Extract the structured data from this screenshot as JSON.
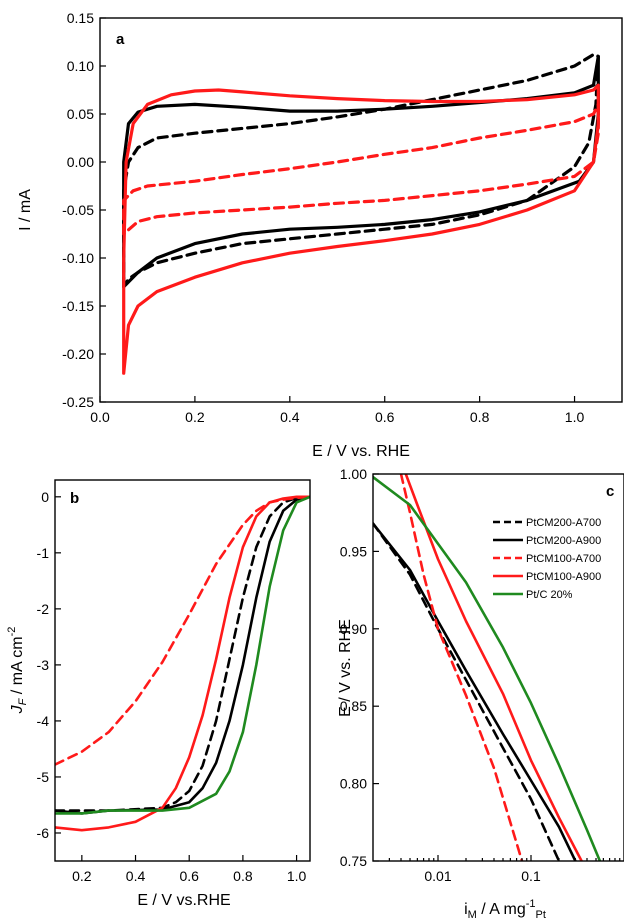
{
  "colors": {
    "black": "#000000",
    "red": "#ff1a1a",
    "green": "#1f8a1f"
  },
  "chart_data": [
    {
      "type": "line",
      "panel_label": "a",
      "xlabel": "E / V vs. RHE",
      "ylabel": "I / mA",
      "xlim": [
        0.0,
        1.1
      ],
      "ylim": [
        -0.25,
        0.15
      ],
      "x_ticks": [
        0.0,
        0.2,
        0.4,
        0.6,
        0.8,
        1.0
      ],
      "y_ticks": [
        -0.25,
        -0.2,
        -0.15,
        -0.1,
        -0.05,
        0.0,
        0.05,
        0.1,
        0.15
      ],
      "x_tick_labels": [
        "0.0",
        "0.2",
        "0.4",
        "0.6",
        "0.8",
        "1.0"
      ],
      "y_tick_labels": [
        "-0.25",
        "-0.20",
        "-0.15",
        "-0.10",
        "-0.05",
        "0.00",
        "0.05",
        "0.10",
        "0.15"
      ],
      "series": [
        {
          "color": "black",
          "dash": true,
          "points": [
            [
              0.05,
              -0.13
            ],
            [
              0.05,
              -0.03
            ],
            [
              0.06,
              0.0
            ],
            [
              0.08,
              0.015
            ],
            [
              0.12,
              0.025
            ],
            [
              0.2,
              0.03
            ],
            [
              0.3,
              0.035
            ],
            [
              0.4,
              0.04
            ],
            [
              0.5,
              0.047
            ],
            [
              0.6,
              0.055
            ],
            [
              0.7,
              0.065
            ],
            [
              0.8,
              0.075
            ],
            [
              0.9,
              0.085
            ],
            [
              1.0,
              0.1
            ],
            [
              1.04,
              0.112
            ],
            [
              1.05,
              0.11
            ],
            [
              1.045,
              0.06
            ],
            [
              1.03,
              0.02
            ],
            [
              1.0,
              -0.005
            ],
            [
              0.9,
              -0.04
            ],
            [
              0.8,
              -0.055
            ],
            [
              0.7,
              -0.065
            ],
            [
              0.6,
              -0.07
            ],
            [
              0.5,
              -0.075
            ],
            [
              0.4,
              -0.08
            ],
            [
              0.3,
              -0.085
            ],
            [
              0.2,
              -0.095
            ],
            [
              0.12,
              -0.105
            ],
            [
              0.08,
              -0.115
            ],
            [
              0.06,
              -0.122
            ],
            [
              0.05,
              -0.13
            ]
          ]
        },
        {
          "color": "black",
          "dash": false,
          "points": [
            [
              0.05,
              -0.13
            ],
            [
              0.05,
              0.0
            ],
            [
              0.06,
              0.04
            ],
            [
              0.08,
              0.052
            ],
            [
              0.12,
              0.058
            ],
            [
              0.2,
              0.06
            ],
            [
              0.3,
              0.057
            ],
            [
              0.4,
              0.053
            ],
            [
              0.5,
              0.053
            ],
            [
              0.6,
              0.055
            ],
            [
              0.7,
              0.058
            ],
            [
              0.8,
              0.062
            ],
            [
              0.9,
              0.066
            ],
            [
              1.0,
              0.072
            ],
            [
              1.04,
              0.08
            ],
            [
              1.05,
              0.11
            ],
            [
              1.05,
              0.05
            ],
            [
              1.04,
              0.0
            ],
            [
              1.01,
              -0.02
            ],
            [
              0.9,
              -0.04
            ],
            [
              0.8,
              -0.052
            ],
            [
              0.7,
              -0.06
            ],
            [
              0.6,
              -0.065
            ],
            [
              0.5,
              -0.068
            ],
            [
              0.4,
              -0.07
            ],
            [
              0.3,
              -0.075
            ],
            [
              0.2,
              -0.085
            ],
            [
              0.12,
              -0.1
            ],
            [
              0.08,
              -0.115
            ],
            [
              0.05,
              -0.13
            ]
          ]
        },
        {
          "color": "red",
          "dash": true,
          "points": [
            [
              0.05,
              -0.075
            ],
            [
              0.05,
              -0.04
            ],
            [
              0.07,
              -0.03
            ],
            [
              0.1,
              -0.025
            ],
            [
              0.2,
              -0.02
            ],
            [
              0.3,
              -0.013
            ],
            [
              0.4,
              -0.007
            ],
            [
              0.5,
              0.0
            ],
            [
              0.6,
              0.008
            ],
            [
              0.7,
              0.015
            ],
            [
              0.8,
              0.025
            ],
            [
              0.9,
              0.033
            ],
            [
              1.0,
              0.042
            ],
            [
              1.04,
              0.05
            ],
            [
              1.05,
              0.06
            ],
            [
              1.05,
              0.03
            ],
            [
              1.04,
              0.0
            ],
            [
              1.0,
              -0.015
            ],
            [
              0.9,
              -0.023
            ],
            [
              0.8,
              -0.03
            ],
            [
              0.7,
              -0.035
            ],
            [
              0.6,
              -0.04
            ],
            [
              0.5,
              -0.043
            ],
            [
              0.4,
              -0.047
            ],
            [
              0.3,
              -0.05
            ],
            [
              0.2,
              -0.053
            ],
            [
              0.12,
              -0.057
            ],
            [
              0.08,
              -0.062
            ],
            [
              0.05,
              -0.075
            ]
          ]
        },
        {
          "color": "red",
          "dash": false,
          "points": [
            [
              0.05,
              -0.22
            ],
            [
              0.05,
              -0.1
            ],
            [
              0.055,
              0.0
            ],
            [
              0.07,
              0.04
            ],
            [
              0.1,
              0.06
            ],
            [
              0.15,
              0.07
            ],
            [
              0.2,
              0.074
            ],
            [
              0.25,
              0.075
            ],
            [
              0.3,
              0.073
            ],
            [
              0.4,
              0.069
            ],
            [
              0.5,
              0.066
            ],
            [
              0.6,
              0.064
            ],
            [
              0.7,
              0.063
            ],
            [
              0.8,
              0.063
            ],
            [
              0.9,
              0.065
            ],
            [
              1.0,
              0.07
            ],
            [
              1.04,
              0.075
            ],
            [
              1.05,
              0.08
            ],
            [
              1.05,
              0.04
            ],
            [
              1.04,
              0.0
            ],
            [
              1.0,
              -0.03
            ],
            [
              0.9,
              -0.05
            ],
            [
              0.8,
              -0.065
            ],
            [
              0.7,
              -0.075
            ],
            [
              0.6,
              -0.082
            ],
            [
              0.5,
              -0.088
            ],
            [
              0.4,
              -0.095
            ],
            [
              0.3,
              -0.105
            ],
            [
              0.2,
              -0.12
            ],
            [
              0.12,
              -0.135
            ],
            [
              0.08,
              -0.15
            ],
            [
              0.06,
              -0.17
            ],
            [
              0.05,
              -0.22
            ]
          ]
        }
      ]
    },
    {
      "type": "line",
      "panel_label": "b",
      "xlabel": "E / V vs.RHE",
      "ylabel": "J_F / mA cm^-2",
      "xlim": [
        0.1,
        1.05
      ],
      "ylim": [
        -6.5,
        0.3
      ],
      "x_ticks": [
        0.2,
        0.4,
        0.6,
        0.8,
        1.0
      ],
      "y_ticks": [
        -6,
        -5,
        -4,
        -3,
        -2,
        -1,
        0
      ],
      "x_tick_labels": [
        "0.2",
        "0.4",
        "0.6",
        "0.8",
        "1.0"
      ],
      "y_tick_labels": [
        "-6",
        "-5",
        "-4",
        "-3",
        "-2",
        "-1",
        "0"
      ],
      "series": [
        {
          "color": "black",
          "dash": true,
          "points": [
            [
              0.1,
              -5.6
            ],
            [
              0.3,
              -5.6
            ],
            [
              0.5,
              -5.55
            ],
            [
              0.55,
              -5.45
            ],
            [
              0.6,
              -5.25
            ],
            [
              0.65,
              -4.8
            ],
            [
              0.7,
              -4.0
            ],
            [
              0.75,
              -2.9
            ],
            [
              0.8,
              -1.8
            ],
            [
              0.85,
              -0.9
            ],
            [
              0.9,
              -0.35
            ],
            [
              0.95,
              -0.1
            ],
            [
              1.0,
              -0.02
            ],
            [
              1.05,
              0.0
            ]
          ]
        },
        {
          "color": "black",
          "dash": false,
          "points": [
            [
              0.1,
              -5.6
            ],
            [
              0.2,
              -5.65
            ],
            [
              0.3,
              -5.6
            ],
            [
              0.5,
              -5.58
            ],
            [
              0.6,
              -5.45
            ],
            [
              0.65,
              -5.2
            ],
            [
              0.7,
              -4.75
            ],
            [
              0.75,
              -4.0
            ],
            [
              0.8,
              -3.0
            ],
            [
              0.85,
              -1.8
            ],
            [
              0.9,
              -0.8
            ],
            [
              0.95,
              -0.25
            ],
            [
              1.0,
              -0.05
            ],
            [
              1.05,
              0.0
            ]
          ]
        },
        {
          "color": "red",
          "dash": true,
          "points": [
            [
              0.1,
              -4.78
            ],
            [
              0.2,
              -4.55
            ],
            [
              0.3,
              -4.2
            ],
            [
              0.4,
              -3.65
            ],
            [
              0.5,
              -2.95
            ],
            [
              0.6,
              -2.1
            ],
            [
              0.7,
              -1.2
            ],
            [
              0.8,
              -0.5
            ],
            [
              0.85,
              -0.25
            ],
            [
              0.9,
              -0.1
            ],
            [
              0.95,
              -0.05
            ],
            [
              1.0,
              -0.02
            ],
            [
              1.05,
              0.0
            ]
          ]
        },
        {
          "color": "red",
          "dash": false,
          "points": [
            [
              0.1,
              -5.9
            ],
            [
              0.2,
              -5.95
            ],
            [
              0.3,
              -5.9
            ],
            [
              0.4,
              -5.8
            ],
            [
              0.5,
              -5.55
            ],
            [
              0.55,
              -5.2
            ],
            [
              0.6,
              -4.65
            ],
            [
              0.65,
              -3.9
            ],
            [
              0.7,
              -2.9
            ],
            [
              0.75,
              -1.8
            ],
            [
              0.8,
              -0.9
            ],
            [
              0.85,
              -0.35
            ],
            [
              0.9,
              -0.1
            ],
            [
              0.95,
              -0.03
            ],
            [
              1.0,
              0.0
            ],
            [
              1.05,
              0.0
            ]
          ]
        },
        {
          "color": "green",
          "dash": false,
          "points": [
            [
              0.1,
              -5.65
            ],
            [
              0.2,
              -5.65
            ],
            [
              0.3,
              -5.6
            ],
            [
              0.5,
              -5.6
            ],
            [
              0.6,
              -5.55
            ],
            [
              0.7,
              -5.3
            ],
            [
              0.75,
              -4.9
            ],
            [
              0.8,
              -4.2
            ],
            [
              0.85,
              -3.0
            ],
            [
              0.9,
              -1.6
            ],
            [
              0.95,
              -0.6
            ],
            [
              1.0,
              -0.1
            ],
            [
              1.05,
              0.0
            ]
          ]
        }
      ]
    },
    {
      "type": "line",
      "panel_label": "c",
      "xlabel": "i_M / A mg^-1 Pt",
      "ylabel": "E / V vs. RHE",
      "x_scale": "log",
      "xlim": [
        0.002,
        1.0
      ],
      "ylim": [
        0.75,
        1.0
      ],
      "x_ticks": [
        0.01,
        0.1
      ],
      "y_ticks": [
        0.75,
        0.8,
        0.85,
        0.9,
        0.95,
        1.0
      ],
      "x_tick_labels": [
        "0.01",
        "0.1"
      ],
      "y_tick_labels": [
        "0.75",
        "0.80",
        "0.85",
        "0.90",
        "0.95",
        "1.00"
      ],
      "legend_position": "top-right",
      "series": [
        {
          "name": "PtCM200-A700",
          "color": "black",
          "dash": true,
          "points": [
            [
              0.002,
              0.968
            ],
            [
              0.005,
              0.935
            ],
            [
              0.01,
              0.9
            ],
            [
              0.02,
              0.867
            ],
            [
              0.05,
              0.823
            ],
            [
              0.1,
              0.79
            ],
            [
              0.2,
              0.75
            ]
          ]
        },
        {
          "name": "PtCM200-A900",
          "color": "black",
          "dash": false,
          "points": [
            [
              0.002,
              0.968
            ],
            [
              0.005,
              0.938
            ],
            [
              0.01,
              0.905
            ],
            [
              0.02,
              0.873
            ],
            [
              0.05,
              0.832
            ],
            [
              0.1,
              0.802
            ],
            [
              0.2,
              0.772
            ],
            [
              0.3,
              0.75
            ]
          ]
        },
        {
          "name": "PtCM100-A700",
          "color": "red",
          "dash": true,
          "points": [
            [
              0.004,
              1.0
            ],
            [
              0.005,
              0.975
            ],
            [
              0.007,
              0.935
            ],
            [
              0.01,
              0.9
            ],
            [
              0.02,
              0.857
            ],
            [
              0.04,
              0.81
            ],
            [
              0.08,
              0.75
            ]
          ]
        },
        {
          "name": "PtCM100-A900",
          "color": "red",
          "dash": false,
          "points": [
            [
              0.0045,
              1.0
            ],
            [
              0.006,
              0.98
            ],
            [
              0.01,
              0.945
            ],
            [
              0.02,
              0.905
            ],
            [
              0.05,
              0.858
            ],
            [
              0.1,
              0.815
            ],
            [
              0.2,
              0.778
            ],
            [
              0.35,
              0.75
            ]
          ]
        },
        {
          "name": "Pt/C 20%",
          "color": "green",
          "dash": false,
          "points": [
            [
              0.002,
              0.998
            ],
            [
              0.005,
              0.98
            ],
            [
              0.01,
              0.955
            ],
            [
              0.02,
              0.93
            ],
            [
              0.05,
              0.888
            ],
            [
              0.1,
              0.852
            ],
            [
              0.2,
              0.812
            ],
            [
              0.4,
              0.77
            ],
            [
              0.55,
              0.75
            ]
          ]
        }
      ]
    }
  ]
}
